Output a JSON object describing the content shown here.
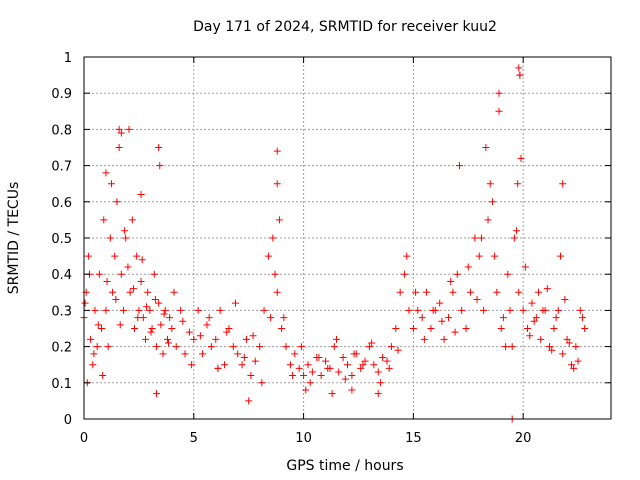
{
  "chart_data": {
    "type": "scatter",
    "title": "Day 171 of 2024, SRMTID for receiver kuu2",
    "xlabel": "GPS time / hours",
    "ylabel": "SRMTID / TECUs",
    "xlim": [
      0,
      24
    ],
    "ylim": [
      0,
      1
    ],
    "xticks": [
      0,
      5,
      10,
      15,
      20
    ],
    "xtick_labels": [
      "0",
      "5",
      "10",
      "15",
      "20"
    ],
    "yticks": [
      0,
      0.1,
      0.2,
      0.3,
      0.4,
      0.5,
      0.6,
      0.7,
      0.8,
      0.9,
      1
    ],
    "ytick_labels": [
      "0",
      "0.1",
      "0.2",
      "0.3",
      "0.4",
      "0.5",
      "0.6",
      "0.7",
      "0.8",
      "0.9",
      "1"
    ],
    "grid": true,
    "marker": "+",
    "color": "#ff0000",
    "series": [
      {
        "name": "SRMTID",
        "x": [
          0.0,
          0.1,
          0.2,
          0.3,
          0.4,
          0.5,
          0.6,
          0.7,
          0.8,
          0.9,
          1.0,
          1.1,
          1.2,
          1.3,
          1.4,
          1.5,
          1.6,
          1.7,
          1.8,
          1.9,
          2.0,
          2.1,
          2.2,
          2.3,
          2.4,
          2.5,
          2.6,
          2.7,
          2.8,
          2.9,
          3.0,
          3.1,
          3.2,
          3.3,
          3.4,
          3.5,
          3.6,
          3.7,
          3.8,
          3.9,
          4.0,
          4.2,
          4.4,
          4.6,
          4.8,
          5.0,
          5.2,
          5.4,
          5.6,
          5.8,
          6.0,
          6.2,
          6.4,
          6.6,
          6.8,
          7.0,
          7.2,
          7.4,
          7.6,
          7.8,
          8.0,
          8.2,
          8.4,
          8.6,
          8.8,
          9.0,
          9.2,
          9.4,
          9.6,
          9.8,
          10.0,
          10.2,
          10.4,
          10.6,
          10.8,
          11.0,
          11.2,
          11.4,
          11.6,
          11.8,
          12.0,
          12.2,
          12.4,
          12.6,
          12.8,
          13.0,
          13.2,
          13.4,
          13.6,
          13.8,
          14.0,
          14.2,
          14.4,
          14.6,
          14.8,
          15.0,
          15.2,
          15.4,
          15.6,
          15.8,
          16.0,
          16.2,
          16.4,
          16.6,
          16.8,
          17.0,
          17.2,
          17.4,
          17.6,
          17.8,
          18.0,
          18.2,
          18.4,
          18.6,
          18.8,
          19.0,
          19.2,
          19.4,
          19.6,
          19.8,
          20.0,
          20.2,
          20.4,
          20.6,
          20.8,
          21.0,
          21.2,
          21.4,
          21.6,
          21.8,
          22.0,
          22.2,
          22.4,
          22.6,
          22.8,
          0.05,
          0.25,
          0.45,
          0.65,
          0.85,
          1.05,
          1.25,
          1.45,
          1.65,
          1.85,
          2.05,
          2.25,
          2.45,
          2.65,
          2.85,
          3.05,
          3.25,
          3.45,
          3.65,
          3.85,
          4.1,
          4.5,
          4.9,
          5.3,
          5.7,
          6.1,
          6.5,
          6.9,
          7.3,
          7.7,
          8.1,
          8.5,
          8.7,
          8.8,
          8.9,
          9.1,
          9.5,
          9.9,
          10.3,
          10.7,
          11.1,
          11.5,
          11.9,
          12.3,
          12.7,
          13.1,
          13.5,
          13.9,
          14.3,
          14.7,
          15.1,
          15.5,
          15.9,
          16.3,
          16.7,
          16.9,
          17.1,
          17.5,
          17.9,
          18.1,
          18.3,
          18.5,
          18.7,
          18.9,
          19.1,
          19.3,
          19.5,
          19.7,
          19.75,
          19.85,
          19.9,
          20.1,
          20.3,
          20.5,
          20.7,
          20.9,
          21.1,
          21.3,
          21.5,
          21.7,
          21.9,
          22.1,
          22.3,
          22.5,
          22.7,
          1.6,
          1.7,
          3.4,
          8.8,
          18.9,
          19.8,
          19.85,
          19.5,
          21.8,
          6.1,
          7.5,
          10.1,
          11.3,
          12.2,
          13.4,
          1.0,
          0.15,
          2.6,
          3.3
        ],
        "y": [
          0.28,
          0.35,
          0.45,
          0.22,
          0.15,
          0.3,
          0.2,
          0.4,
          0.25,
          0.55,
          0.3,
          0.2,
          0.5,
          0.35,
          0.45,
          0.6,
          0.75,
          0.4,
          0.3,
          0.5,
          0.42,
          0.35,
          0.55,
          0.25,
          0.45,
          0.3,
          0.38,
          0.28,
          0.22,
          0.35,
          0.3,
          0.25,
          0.4,
          0.2,
          0.32,
          0.26,
          0.18,
          0.3,
          0.22,
          0.28,
          0.25,
          0.2,
          0.3,
          0.18,
          0.24,
          0.22,
          0.3,
          0.18,
          0.26,
          0.2,
          0.22,
          0.3,
          0.15,
          0.25,
          0.2,
          0.18,
          0.15,
          0.22,
          0.12,
          0.16,
          0.2,
          0.3,
          0.45,
          0.5,
          0.35,
          0.25,
          0.2,
          0.15,
          0.18,
          0.14,
          0.12,
          0.15,
          0.13,
          0.17,
          0.12,
          0.16,
          0.14,
          0.2,
          0.13,
          0.17,
          0.15,
          0.12,
          0.18,
          0.14,
          0.16,
          0.2,
          0.15,
          0.13,
          0.17,
          0.16,
          0.2,
          0.25,
          0.35,
          0.4,
          0.3,
          0.25,
          0.3,
          0.28,
          0.35,
          0.25,
          0.3,
          0.32,
          0.22,
          0.28,
          0.35,
          0.4,
          0.3,
          0.25,
          0.35,
          0.5,
          0.45,
          0.3,
          0.55,
          0.6,
          0.35,
          0.25,
          0.2,
          0.3,
          0.5,
          0.35,
          0.3,
          0.25,
          0.32,
          0.28,
          0.22,
          0.3,
          0.2,
          0.25,
          0.3,
          0.18,
          0.22,
          0.15,
          0.2,
          0.3,
          0.25,
          0.32,
          0.4,
          0.18,
          0.26,
          0.12,
          0.38,
          0.65,
          0.33,
          0.26,
          0.52,
          0.8,
          0.36,
          0.28,
          0.44,
          0.31,
          0.24,
          0.33,
          0.7,
          0.29,
          0.21,
          0.35,
          0.27,
          0.15,
          0.23,
          0.28,
          0.14,
          0.24,
          0.32,
          0.17,
          0.23,
          0.1,
          0.28,
          0.4,
          0.65,
          0.55,
          0.28,
          0.12,
          0.2,
          0.1,
          0.17,
          0.14,
          0.22,
          0.11,
          0.18,
          0.15,
          0.21,
          0.1,
          0.14,
          0.19,
          0.45,
          0.35,
          0.22,
          0.3,
          0.27,
          0.38,
          0.24,
          0.7,
          0.42,
          0.33,
          0.5,
          0.75,
          0.65,
          0.45,
          0.85,
          0.28,
          0.4,
          0.2,
          0.52,
          0.65,
          0.95,
          0.72,
          0.42,
          0.23,
          0.27,
          0.35,
          0.3,
          0.36,
          0.19,
          0.28,
          0.45,
          0.33,
          0.21,
          0.14,
          0.16,
          0.28,
          0.8,
          0.79,
          0.75,
          0.74,
          0.9,
          0.97,
          0.95,
          0.0,
          0.65,
          0.14,
          0.05,
          0.08,
          0.07,
          0.08,
          0.07,
          0.68,
          0.1,
          0.62,
          0.07
        ]
      }
    ]
  }
}
